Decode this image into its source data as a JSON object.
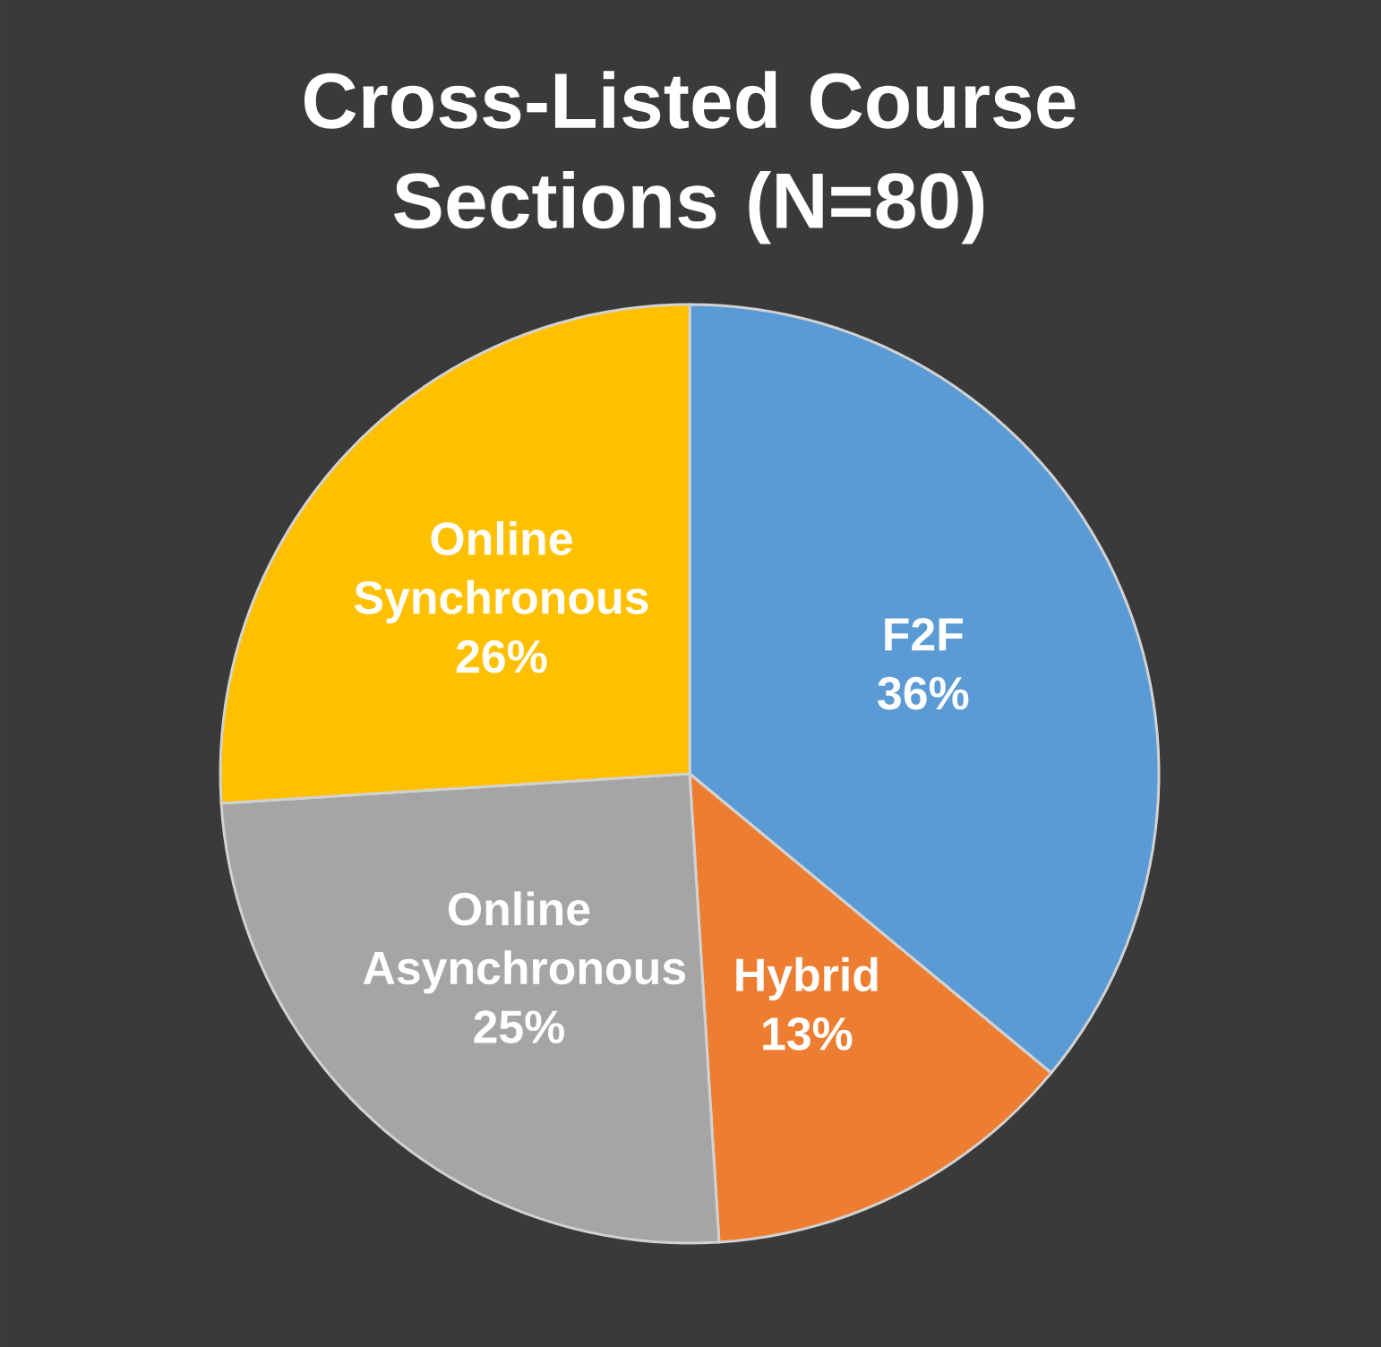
{
  "chart_data": {
    "type": "pie",
    "title": "Cross-Listed Course Sections (N=80)",
    "categories": [
      "F2F",
      "Hybrid",
      "Online Asynchronous",
      "Online Synchronous"
    ],
    "values": [
      36,
      13,
      25,
      26
    ],
    "value_labels": [
      "36%",
      "13%",
      "25%",
      "26%"
    ],
    "colors": [
      "#5b9bd5",
      "#ed7d31",
      "#a5a5a5",
      "#ffc000"
    ]
  }
}
